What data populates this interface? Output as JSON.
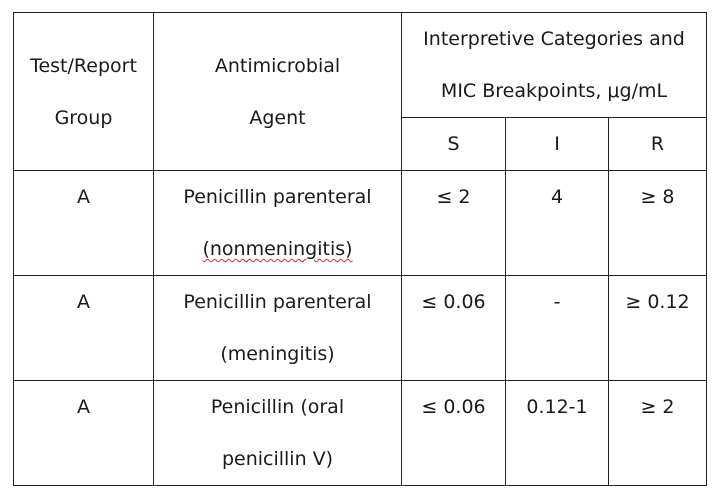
{
  "header": {
    "group_line1": "Test/Report",
    "group_line2": "Group",
    "agent_line1": "Antimicrobial",
    "agent_line2": "Agent",
    "interp_line1": "Interpretive Categories and",
    "interp_line2": "MIC Breakpoints,  μg/mL",
    "col_s": "S",
    "col_i": "I",
    "col_r": "R"
  },
  "rows": [
    {
      "group": "A",
      "agent_line1": "Penicillin parenteral",
      "agent_line2": "(nonmeningitis)",
      "s": "≤ 2",
      "i": "4",
      "r": "≥ 8"
    },
    {
      "group": "A",
      "agent_line1": "Penicillin parenteral",
      "agent_line2": "(meningitis)",
      "s": "≤ 0.06",
      "i": "-",
      "r": "≥ 0.12"
    },
    {
      "group": "A",
      "agent_line1": "Penicillin (oral",
      "agent_line2": "penicillin V)",
      "s": "≤ 0.06",
      "i": "0.12-1",
      "r": "≥ 2"
    }
  ],
  "colors": {
    "border": "#222222",
    "text": "#1a1a1a",
    "spellcheck_underline": "#d03030"
  }
}
